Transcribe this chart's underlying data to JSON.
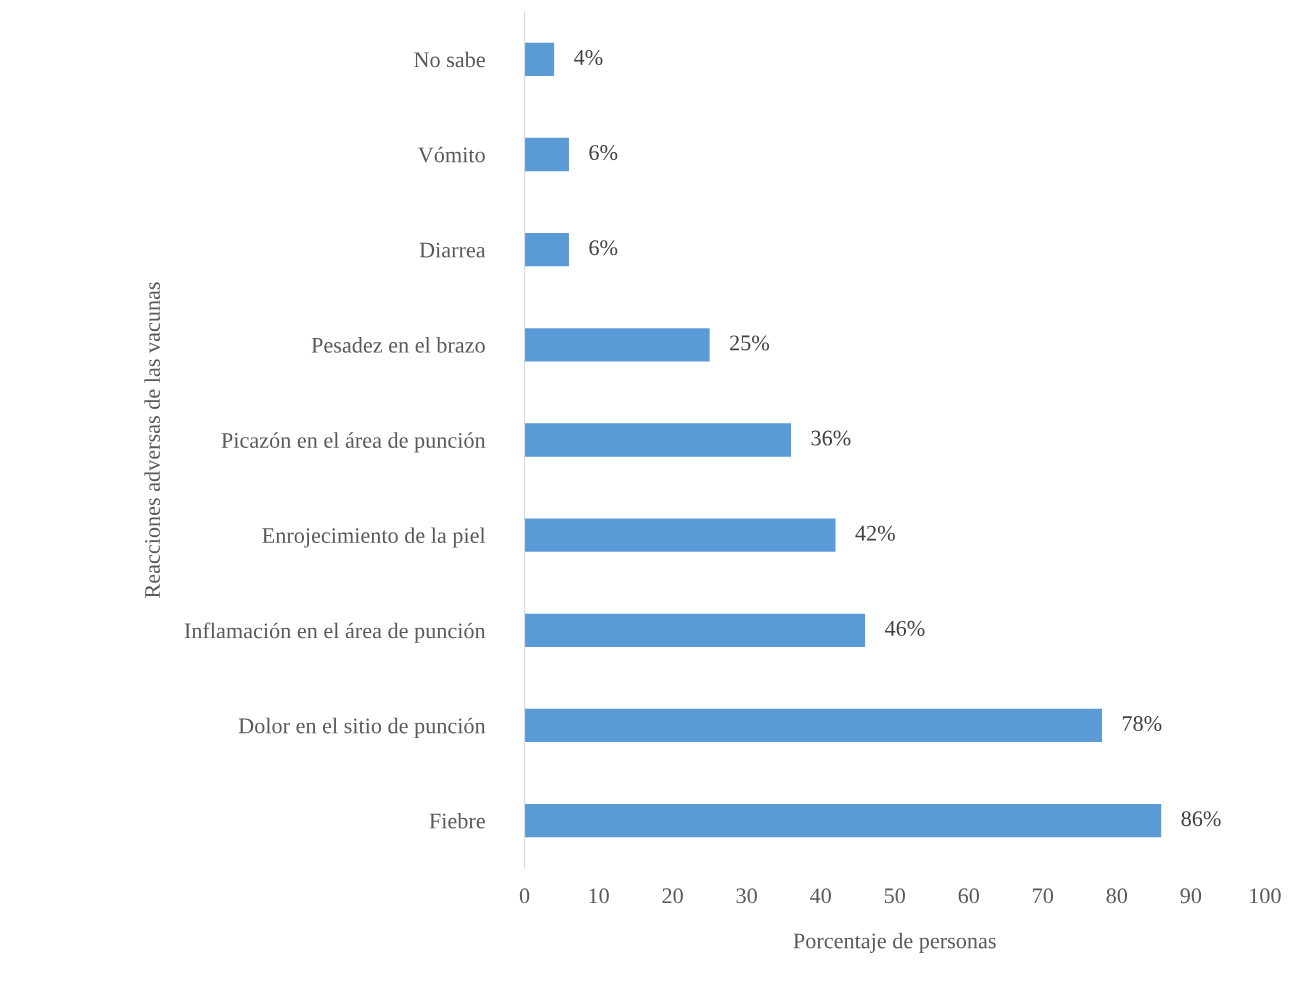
{
  "chart_data": {
    "type": "bar",
    "orientation": "horizontal",
    "categories": [
      "No sabe",
      "Vómito",
      "Diarrea",
      "Pesadez en el brazo",
      "Picazón en el área de punción",
      "Enrojecimiento de la piel",
      "Inflamación en el área de punción",
      "Dolor en el sitio de punción",
      "Fiebre"
    ],
    "values": [
      4,
      6,
      6,
      25,
      36,
      42,
      46,
      78,
      86
    ],
    "value_labels": [
      "4%",
      "6%",
      "6%",
      "25%",
      "36%",
      "42%",
      "46%",
      "78%",
      "86%"
    ],
    "color": "#5b9bd5",
    "xlabel": "Porcentaje de personas",
    "ylabel": "Reacciones adversas de las vacunas",
    "xlim": [
      0,
      100
    ],
    "xticks": [
      0,
      10,
      20,
      30,
      40,
      50,
      60,
      70,
      80,
      90,
      100
    ],
    "grid": false,
    "legend": false
  }
}
